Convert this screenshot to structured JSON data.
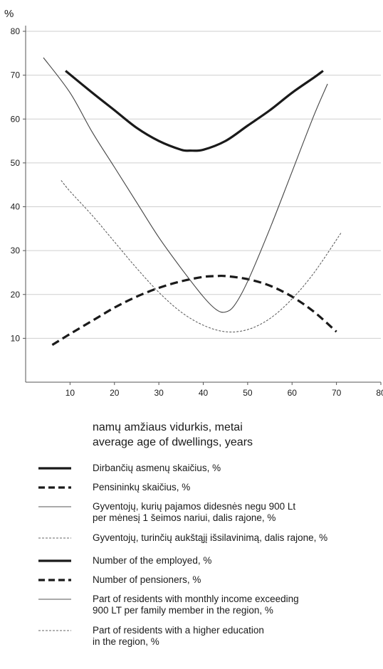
{
  "chart_data": {
    "type": "line",
    "unit_label": "%",
    "x_ticks": [
      "10",
      "20",
      "30",
      "40",
      "50",
      "60",
      "70",
      "80"
    ],
    "y_ticks": [
      "10",
      "20",
      "30",
      "40",
      "50",
      "60",
      "70",
      "80"
    ],
    "xlim": [
      0,
      80
    ],
    "ylim": [
      0,
      80
    ],
    "grid": "horizontal",
    "xlabel_lines": [
      "namų amžiaus vidurkis, metai",
      "average age of dwellings, years"
    ],
    "series": [
      {
        "name": "Dirbančių asmenų skaičius, %",
        "style": "thick-solid",
        "color": "#1a1a1a",
        "x": [
          9,
          15,
          20,
          25,
          30,
          35,
          37,
          40,
          45,
          50,
          55,
          60,
          65,
          67
        ],
        "y": [
          71,
          66,
          62,
          58,
          55,
          53,
          52.8,
          53,
          55,
          58.5,
          62,
          66,
          69.5,
          71
        ]
      },
      {
        "name": "Pensininkų skaičius, %",
        "style": "thick-dashed",
        "color": "#1a1a1a",
        "x": [
          6,
          10,
          15,
          20,
          25,
          30,
          35,
          40,
          43,
          45,
          50,
          55,
          60,
          65,
          70
        ],
        "y": [
          8.5,
          11,
          14,
          17,
          19.5,
          21.5,
          23,
          24,
          24.2,
          24.2,
          23.5,
          22,
          19.5,
          16,
          11.5
        ]
      },
      {
        "name": "Gyventojų, kurių pajamos didesnės negu 900 Lt per mėnesį 1 šeimos nariui, dalis rajone, %",
        "style": "thin-solid",
        "color": "#444444",
        "x": [
          4,
          10,
          15,
          20,
          25,
          30,
          35,
          40,
          43,
          45,
          47,
          50,
          55,
          60,
          65,
          68
        ],
        "y": [
          74,
          66,
          57,
          49,
          41,
          33,
          26,
          19.5,
          16.5,
          16,
          17.5,
          23,
          35,
          48,
          61,
          68
        ]
      },
      {
        "name": "Gyventojų, turinčių aukštąjį išsilavinimą, dalis rajone, %",
        "style": "thin-dashed",
        "color": "#555555",
        "x": [
          8,
          10,
          15,
          20,
          25,
          30,
          35,
          40,
          45,
          50,
          55,
          60,
          65,
          71
        ],
        "y": [
          46,
          43.5,
          38,
          32,
          26,
          20.5,
          16,
          13,
          11.5,
          12,
          14.5,
          19,
          25,
          34
        ]
      }
    ]
  },
  "legend_lt": [
    {
      "style": "thick-solid",
      "lines": [
        "Dirbančių asmenų skaičius, %"
      ]
    },
    {
      "style": "thick-dashed",
      "lines": [
        "Pensininkų skaičius, %"
      ]
    },
    {
      "style": "thin-solid",
      "lines": [
        "Gyventojų, kurių pajamos didesnės negu 900 Lt",
        "per mėnesį 1 šeimos nariui, dalis rajone, %"
      ]
    },
    {
      "style": "thin-dashed",
      "lines": [
        "Gyventojų, turinčių aukštąjį išsilavinimą, dalis rajone, %"
      ]
    }
  ],
  "legend_en": [
    {
      "style": "thick-solid",
      "lines": [
        "Number of the employed, %"
      ]
    },
    {
      "style": "thick-dashed",
      "lines": [
        "Number of pensioners, %"
      ]
    },
    {
      "style": "thin-solid",
      "lines": [
        "Part of residents with monthly income exceeding",
        "900 LT per family member in the region, %"
      ]
    },
    {
      "style": "thin-dashed",
      "lines": [
        "Part of residents with a higher education",
        "in the region, %"
      ]
    }
  ]
}
